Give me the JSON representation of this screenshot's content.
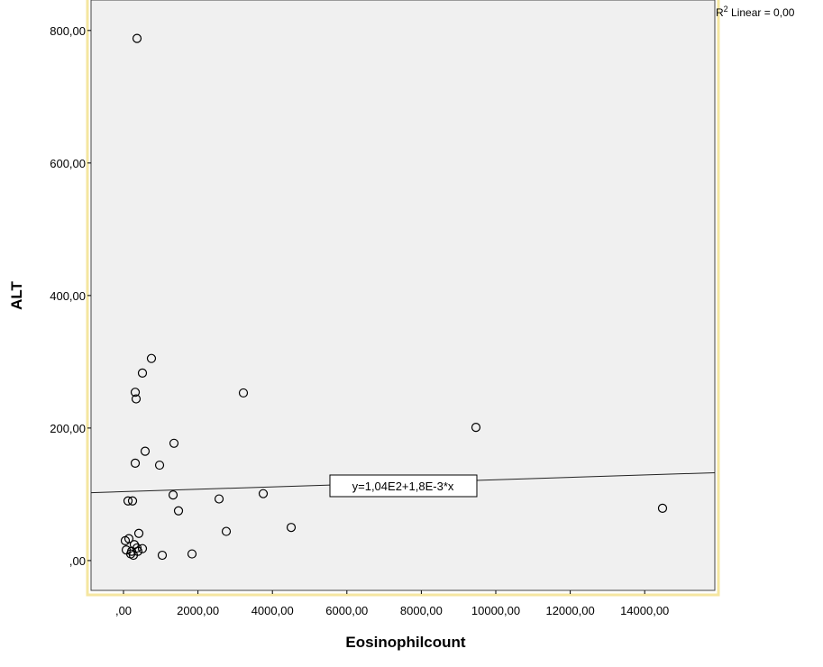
{
  "chart_data": {
    "type": "scatter",
    "x_label": "Eosinophilcount",
    "y_label": "ALT",
    "xlim": [
      -872,
      15884
    ],
    "ylim": [
      -45,
      846
    ],
    "xticks": [
      {
        "value": 0,
        "label": ",00"
      },
      {
        "value": 2000,
        "label": "2000,00"
      },
      {
        "value": 4000,
        "label": "4000,00"
      },
      {
        "value": 6000,
        "label": "6000,00"
      },
      {
        "value": 8000,
        "label": "8000,00"
      },
      {
        "value": 10000,
        "label": "10000,00"
      },
      {
        "value": 12000,
        "label": "12000,00"
      },
      {
        "value": 14000,
        "label": "14000,00"
      }
    ],
    "yticks": [
      {
        "value": 0,
        "label": ",00"
      },
      {
        "value": 200,
        "label": "200,00"
      },
      {
        "value": 400,
        "label": "400,00"
      },
      {
        "value": 600,
        "label": "600,00"
      },
      {
        "value": 800,
        "label": "800,00"
      }
    ],
    "x": [
      363,
      750,
      508,
      315,
      339,
      3220,
      581,
      1356,
      315,
      969,
      9467,
      1332,
      2567,
      3753,
      121,
      242,
      1477,
      14479,
      4504,
      2760,
      412,
      48,
      145,
      290,
      363,
      508,
      73,
      218,
      387,
      194,
      266,
      1041,
      1840
    ],
    "values": [
      788,
      305,
      283,
      254,
      244,
      253,
      165,
      177,
      147,
      144,
      201,
      99,
      93,
      101,
      90,
      90,
      75,
      79,
      50,
      44,
      41,
      30,
      33,
      24,
      19,
      18,
      16,
      14,
      14,
      10,
      8,
      8,
      10
    ],
    "fit": {
      "intercept": 104,
      "slope": 0.0018,
      "label": "y=1,04E2+1,8E-3*x"
    },
    "r2_label": {
      "prefix": "R",
      "sup": "2",
      "text": " Linear = 0,00"
    },
    "background": "#f0f0f0",
    "marker_color": "#000000"
  }
}
